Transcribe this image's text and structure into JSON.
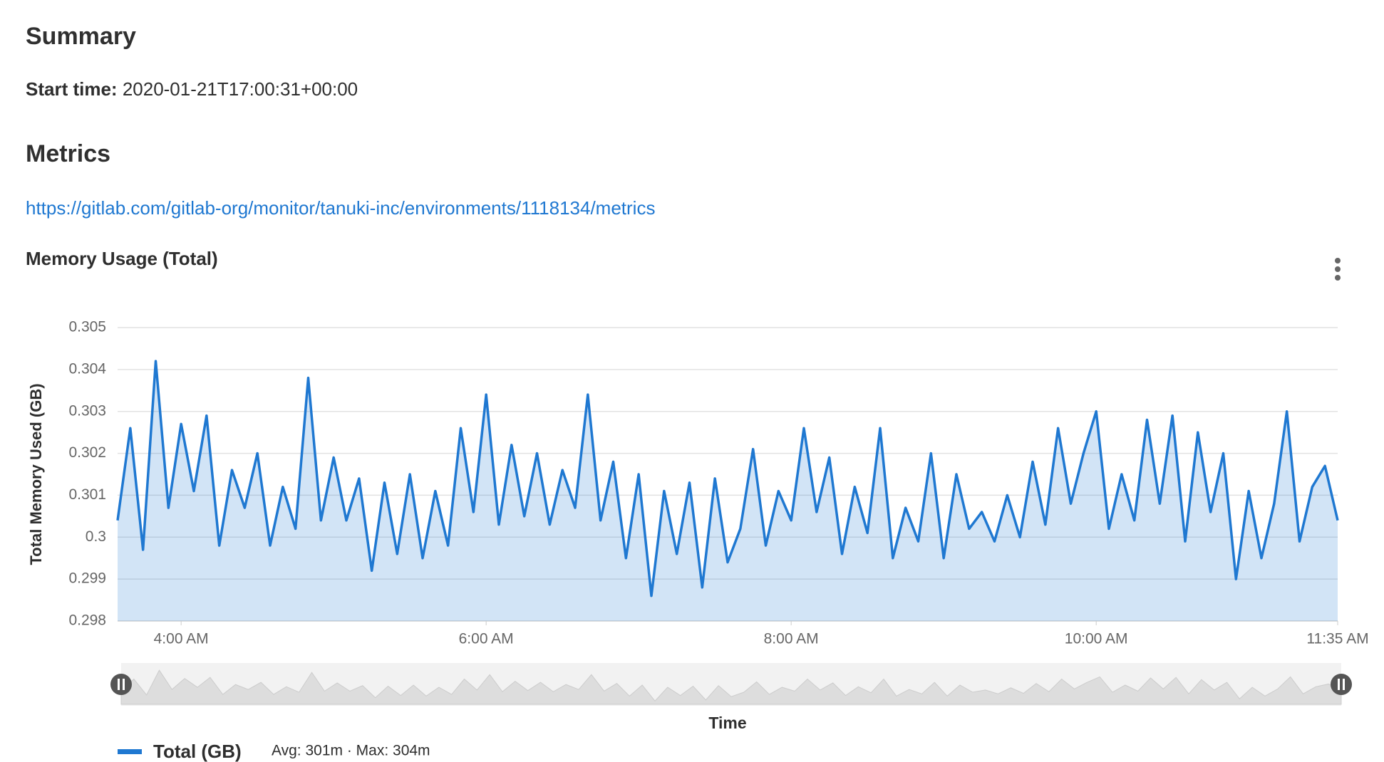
{
  "header": {
    "summary_title": "Summary",
    "start_time_label": "Start time:",
    "start_time_value": "2020-01-21T17:00:31+00:00",
    "metrics_title": "Metrics",
    "metrics_url": "https://gitlab.com/gitlab-org/monitor/tanuki-inc/environments/1118134/metrics"
  },
  "chart_data": {
    "type": "line",
    "fill_area": true,
    "title": "Memory Usage (Total)",
    "xlabel": "Time",
    "ylabel": "Total Memory Used (GB)",
    "grid": true,
    "xlim": [
      "3:35 AM",
      "11:35 AM"
    ],
    "xticks": [
      "4:00 AM",
      "6:00 AM",
      "8:00 AM",
      "10:00 AM",
      "11:35 AM"
    ],
    "ylim": [
      0.298,
      0.305
    ],
    "yticks": [
      0.298,
      0.299,
      0.3,
      0.301,
      0.302,
      0.303,
      0.304,
      0.305
    ],
    "x": [
      "3:35 AM",
      "3:40 AM",
      "3:45 AM",
      "3:50 AM",
      "3:55 AM",
      "4:00 AM",
      "4:05 AM",
      "4:10 AM",
      "4:15 AM",
      "4:20 AM",
      "4:25 AM",
      "4:30 AM",
      "4:35 AM",
      "4:40 AM",
      "4:45 AM",
      "4:50 AM",
      "4:55 AM",
      "5:00 AM",
      "5:05 AM",
      "5:10 AM",
      "5:15 AM",
      "5:20 AM",
      "5:25 AM",
      "5:30 AM",
      "5:35 AM",
      "5:40 AM",
      "5:45 AM",
      "5:50 AM",
      "5:55 AM",
      "6:00 AM",
      "6:05 AM",
      "6:10 AM",
      "6:15 AM",
      "6:20 AM",
      "6:25 AM",
      "6:30 AM",
      "6:35 AM",
      "6:40 AM",
      "6:45 AM",
      "6:50 AM",
      "6:55 AM",
      "7:00 AM",
      "7:05 AM",
      "7:10 AM",
      "7:15 AM",
      "7:20 AM",
      "7:25 AM",
      "7:30 AM",
      "7:35 AM",
      "7:40 AM",
      "7:45 AM",
      "7:50 AM",
      "7:55 AM",
      "8:00 AM",
      "8:05 AM",
      "8:10 AM",
      "8:15 AM",
      "8:20 AM",
      "8:25 AM",
      "8:30 AM",
      "8:35 AM",
      "8:40 AM",
      "8:45 AM",
      "8:50 AM",
      "8:55 AM",
      "9:00 AM",
      "9:05 AM",
      "9:10 AM",
      "9:15 AM",
      "9:20 AM",
      "9:25 AM",
      "9:30 AM",
      "9:35 AM",
      "9:40 AM",
      "9:45 AM",
      "9:50 AM",
      "9:55 AM",
      "10:00 AM",
      "10:05 AM",
      "10:10 AM",
      "10:15 AM",
      "10:20 AM",
      "10:25 AM",
      "10:30 AM",
      "10:35 AM",
      "10:40 AM",
      "10:45 AM",
      "10:50 AM",
      "10:55 AM",
      "11:00 AM",
      "11:05 AM",
      "11:10 AM",
      "11:15 AM",
      "11:20 AM",
      "11:25 AM",
      "11:30 AM",
      "11:35 AM"
    ],
    "series": [
      {
        "name": "Total (GB)",
        "color": "#1f78d1",
        "stats": "Avg: 301m · Max: 304m",
        "values": [
          0.3004,
          0.3026,
          0.2997,
          0.3042,
          0.3007,
          0.3027,
          0.3011,
          0.3029,
          0.2998,
          0.3016,
          0.3007,
          0.302,
          0.2998,
          0.3012,
          0.3002,
          0.3038,
          0.3004,
          0.3019,
          0.3004,
          0.3014,
          0.2992,
          0.3013,
          0.2996,
          0.3015,
          0.2995,
          0.3011,
          0.2998,
          0.3026,
          0.3006,
          0.3034,
          0.3003,
          0.3022,
          0.3005,
          0.302,
          0.3003,
          0.3016,
          0.3007,
          0.3034,
          0.3004,
          0.3018,
          0.2995,
          0.3015,
          0.2986,
          0.3011,
          0.2996,
          0.3013,
          0.2988,
          0.3014,
          0.2994,
          0.3002,
          0.3021,
          0.2998,
          0.3011,
          0.3004,
          0.3026,
          0.3006,
          0.3019,
          0.2996,
          0.3012,
          0.3001,
          0.3026,
          0.2995,
          0.3007,
          0.2999,
          0.302,
          0.2995,
          0.3015,
          0.3002,
          0.3006,
          0.2999,
          0.301,
          0.3,
          0.3018,
          0.3003,
          0.3026,
          0.3008,
          0.302,
          0.303,
          0.3002,
          0.3015,
          0.3004,
          0.3028,
          0.3008,
          0.3029,
          0.2999,
          0.3025,
          0.3006,
          0.302,
          0.299,
          0.3011,
          0.2995,
          0.3008,
          0.303,
          0.2999,
          0.3012,
          0.3017,
          0.3004
        ]
      }
    ]
  }
}
